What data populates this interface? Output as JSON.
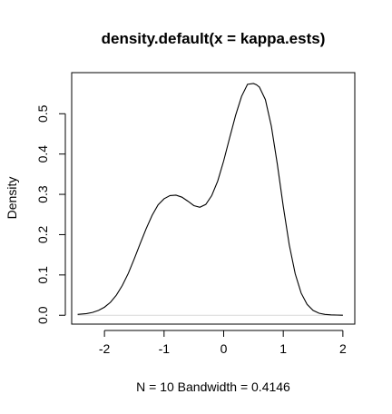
{
  "chart_data": {
    "type": "line",
    "title": "density.default(x = kappa.ests)",
    "xlabel": "N = 10   Bandwidth = 0.4146",
    "ylabel": "Density",
    "xlim": [
      -2.55,
      2.2
    ],
    "ylim": [
      -0.022,
      0.602
    ],
    "x_ticks": [
      -2,
      -1,
      0,
      1,
      2
    ],
    "x_tick_labels": [
      "-2",
      "-1",
      "0",
      "1",
      "2"
    ],
    "y_ticks": [
      0.0,
      0.1,
      0.2,
      0.3,
      0.4,
      0.5
    ],
    "y_tick_labels": [
      "0.0",
      "0.1",
      "0.2",
      "0.3",
      "0.4",
      "0.5"
    ],
    "grid": false,
    "legend": "none",
    "series": [
      {
        "color": "#000000",
        "x": [
          -2.45,
          -2.3,
          -2.2,
          -2.1,
          -2.0,
          -1.9,
          -1.8,
          -1.7,
          -1.6,
          -1.5,
          -1.4,
          -1.3,
          -1.2,
          -1.1,
          -1.0,
          -0.9,
          -0.8,
          -0.7,
          -0.6,
          -0.5,
          -0.4,
          -0.3,
          -0.2,
          -0.1,
          0.0,
          0.1,
          0.2,
          0.3,
          0.4,
          0.5,
          0.55,
          0.6,
          0.7,
          0.8,
          0.9,
          1.0,
          1.1,
          1.2,
          1.3,
          1.4,
          1.5,
          1.6,
          1.7,
          1.8,
          1.9,
          2.0
        ],
        "y": [
          0.002,
          0.004,
          0.007,
          0.012,
          0.02,
          0.032,
          0.05,
          0.074,
          0.104,
          0.14,
          0.178,
          0.215,
          0.248,
          0.274,
          0.289,
          0.297,
          0.298,
          0.293,
          0.283,
          0.272,
          0.268,
          0.275,
          0.297,
          0.333,
          0.383,
          0.44,
          0.496,
          0.543,
          0.573,
          0.575,
          0.572,
          0.566,
          0.535,
          0.469,
          0.375,
          0.27,
          0.175,
          0.103,
          0.055,
          0.027,
          0.012,
          0.005,
          0.002,
          0.001,
          0.0005,
          0.0002
        ]
      }
    ]
  }
}
